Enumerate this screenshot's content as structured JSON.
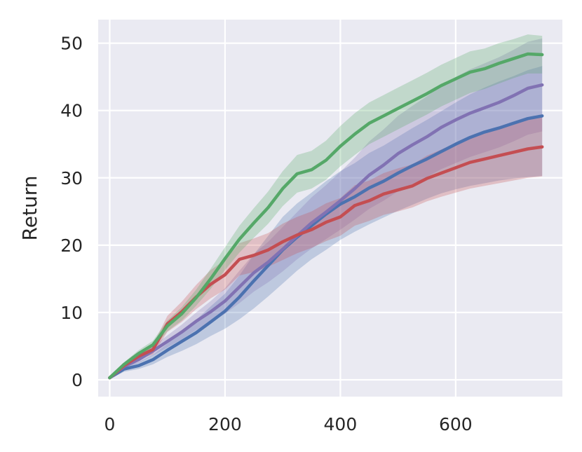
{
  "chart_data": {
    "type": "line",
    "title": "",
    "xlabel": "",
    "ylabel": "Return",
    "xlim": [
      -20,
      785
    ],
    "ylim": [
      -2.5,
      53.5
    ],
    "xticks": [
      0,
      200,
      400,
      600
    ],
    "yticks": [
      0,
      10,
      20,
      30,
      40,
      50
    ],
    "grid": true,
    "legend": "none",
    "background": "#eaeaf2",
    "series": [
      {
        "color": "#4c72b0",
        "x": [
          0,
          25,
          50,
          75,
          100,
          125,
          150,
          175,
          200,
          225,
          250,
          275,
          300,
          325,
          350,
          375,
          400,
          425,
          450,
          475,
          500,
          525,
          550,
          575,
          600,
          625,
          650,
          675,
          700,
          725,
          750
        ],
        "mean": [
          0.3,
          1.6,
          2.1,
          3.0,
          4.4,
          5.7,
          7.0,
          8.6,
          10.2,
          12.3,
          14.7,
          17.0,
          19.3,
          21.2,
          22.9,
          24.6,
          26.1,
          27.2,
          28.5,
          29.5,
          30.7,
          31.8,
          32.8,
          33.9,
          35.0,
          36.0,
          36.8,
          37.4,
          38.1,
          38.8,
          39.2
        ],
        "lower": [
          0.1,
          1.2,
          1.6,
          2.3,
          3.4,
          4.3,
          5.3,
          6.5,
          7.6,
          9.0,
          10.6,
          12.4,
          14.3,
          16.2,
          17.9,
          19.3,
          20.8,
          22.0,
          23.1,
          24.1,
          25.1,
          26.0,
          26.9,
          27.7,
          28.3,
          28.8,
          29.2,
          29.6,
          29.9,
          30.1,
          30.3
        ],
        "upper": [
          0.5,
          2.0,
          2.6,
          3.7,
          5.4,
          7.1,
          8.9,
          10.9,
          12.8,
          15.5,
          18.6,
          21.4,
          24.2,
          26.2,
          27.8,
          29.5,
          31.0,
          32.2,
          33.7,
          34.8,
          36.1,
          37.4,
          38.6,
          39.9,
          41.2,
          42.4,
          43.4,
          44.3,
          45.1,
          46.0,
          46.6
        ]
      },
      {
        "color": "#8172b3",
        "x": [
          0,
          25,
          50,
          75,
          100,
          125,
          150,
          175,
          200,
          225,
          250,
          275,
          300,
          325,
          350,
          375,
          400,
          425,
          450,
          475,
          500,
          525,
          550,
          575,
          600,
          625,
          650,
          675,
          700,
          725,
          750
        ],
        "mean": [
          0.3,
          2.0,
          3.0,
          4.3,
          5.7,
          7.1,
          8.7,
          10.1,
          11.7,
          13.8,
          15.9,
          17.5,
          19.4,
          21.4,
          23.3,
          24.9,
          26.6,
          28.4,
          30.4,
          31.9,
          33.6,
          34.9,
          36.1,
          37.5,
          38.6,
          39.6,
          40.4,
          41.2,
          42.2,
          43.3,
          43.8
        ],
        "lower": [
          0.1,
          1.7,
          2.5,
          3.6,
          4.8,
          6.0,
          7.4,
          8.5,
          9.8,
          11.4,
          13.1,
          14.5,
          16.1,
          17.9,
          19.5,
          20.9,
          22.3,
          23.8,
          25.4,
          26.6,
          28.0,
          29.1,
          30.1,
          31.3,
          32.2,
          33.1,
          33.8,
          34.5,
          35.4,
          36.4,
          36.9
        ],
        "upper": [
          0.5,
          2.3,
          3.5,
          5.0,
          6.6,
          8.2,
          10.0,
          11.7,
          13.6,
          16.2,
          18.7,
          20.5,
          22.7,
          24.9,
          27.1,
          28.9,
          30.9,
          33.0,
          35.4,
          37.2,
          39.2,
          40.7,
          42.1,
          43.7,
          45.0,
          46.1,
          47.0,
          47.9,
          49.0,
          50.2,
          50.7
        ]
      },
      {
        "color": "#c44e52",
        "x": [
          0,
          25,
          50,
          75,
          100,
          125,
          150,
          175,
          200,
          225,
          250,
          275,
          300,
          325,
          350,
          375,
          400,
          425,
          450,
          475,
          500,
          525,
          550,
          575,
          600,
          625,
          650,
          675,
          700,
          725,
          750
        ],
        "mean": [
          0.3,
          2.1,
          3.5,
          4.5,
          8.3,
          10.1,
          12.3,
          14.2,
          15.6,
          17.9,
          18.5,
          19.3,
          20.5,
          21.5,
          22.3,
          23.4,
          24.2,
          25.9,
          26.6,
          27.6,
          28.2,
          28.8,
          29.9,
          30.7,
          31.5,
          32.3,
          32.8,
          33.3,
          33.8,
          34.3,
          34.6
        ],
        "lower": [
          0.1,
          1.7,
          3.0,
          3.8,
          7.1,
          8.6,
          10.5,
          12.1,
          13.4,
          15.5,
          16.0,
          16.8,
          17.8,
          18.8,
          19.6,
          20.6,
          21.4,
          22.9,
          23.6,
          24.5,
          25.0,
          25.6,
          26.5,
          27.2,
          27.8,
          28.4,
          28.8,
          29.2,
          29.6,
          30.0,
          30.2
        ],
        "upper": [
          0.5,
          2.5,
          4.0,
          5.2,
          9.5,
          11.6,
          14.1,
          16.3,
          17.8,
          20.3,
          21.0,
          21.8,
          23.2,
          24.2,
          25.0,
          26.2,
          27.0,
          28.9,
          29.6,
          30.7,
          31.4,
          32.0,
          33.3,
          34.2,
          35.2,
          36.2,
          36.8,
          37.4,
          38.0,
          38.6,
          39.0
        ]
      },
      {
        "color": "#55a868",
        "x": [
          0,
          25,
          50,
          75,
          100,
          125,
          150,
          175,
          200,
          225,
          250,
          275,
          300,
          325,
          350,
          375,
          400,
          425,
          450,
          475,
          500,
          525,
          550,
          575,
          600,
          625,
          650,
          675,
          700,
          725,
          750
        ],
        "mean": [
          0.3,
          2.3,
          3.9,
          5.2,
          8.0,
          9.8,
          12.2,
          15.0,
          18.0,
          20.9,
          23.3,
          25.6,
          28.4,
          30.6,
          31.2,
          32.6,
          34.7,
          36.5,
          38.1,
          39.2,
          40.3,
          41.4,
          42.5,
          43.7,
          44.7,
          45.7,
          46.2,
          47.0,
          47.7,
          48.4,
          48.3
        ],
        "lower": [
          0.1,
          2.0,
          3.4,
          4.6,
          7.2,
          8.8,
          11.0,
          13.5,
          16.3,
          18.9,
          21.1,
          23.2,
          25.8,
          27.8,
          28.4,
          29.7,
          31.7,
          33.4,
          35.0,
          36.1,
          37.2,
          38.3,
          39.4,
          40.6,
          41.6,
          42.6,
          43.2,
          44.0,
          44.8,
          45.5,
          45.5
        ],
        "upper": [
          0.5,
          2.6,
          4.4,
          5.8,
          8.8,
          10.8,
          13.4,
          16.5,
          19.7,
          22.9,
          25.5,
          28.0,
          31.0,
          33.4,
          34.0,
          35.5,
          37.7,
          39.6,
          41.2,
          42.3,
          43.4,
          44.5,
          45.6,
          46.8,
          47.8,
          48.8,
          49.2,
          50.0,
          50.6,
          51.3,
          51.1
        ]
      }
    ]
  }
}
